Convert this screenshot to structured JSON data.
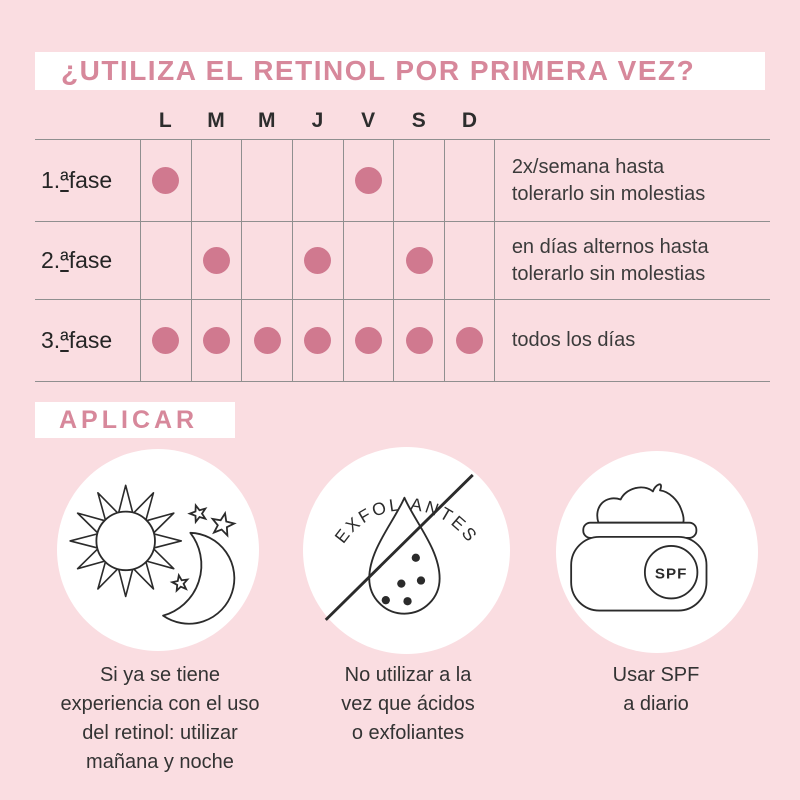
{
  "title": "¿UTILIZA EL RETINOL POR PRIMERA VEZ?",
  "section_heading": "APLICAR",
  "colors": {
    "background": "#fadde1",
    "panel": "#ffffff",
    "accent": "#d7889b",
    "dot": "#d0798f",
    "line": "#8f8f8f",
    "ink": "#2d2d2d",
    "note": "#3b3b3b"
  },
  "schedule_table": {
    "day_headers": [
      "L",
      "M",
      "M",
      "J",
      "V",
      "S",
      "D"
    ],
    "rows": [
      {
        "label": "1.ª fase",
        "dots": [
          1,
          0,
          0,
          0,
          1,
          0,
          0
        ],
        "note": "2x/semana hasta\ntolerarlo sin molestias"
      },
      {
        "label": "2.ª fase",
        "dots": [
          0,
          1,
          0,
          1,
          0,
          1,
          0
        ],
        "note": "en días alternos hasta\ntolerarlo sin molestias"
      },
      {
        "label": "3.ª fase",
        "dots": [
          1,
          1,
          1,
          1,
          1,
          1,
          1
        ],
        "note": "todos los días"
      }
    ]
  },
  "tips": [
    {
      "icon": "sun-and-moon-icon",
      "caption": "Si ya se tiene\nexperiencia con el uso\ndel retinol: utilizar\nmañana y noche"
    },
    {
      "icon": "no-exfoliants-icon",
      "icon_label": "EXFOLIANTES",
      "caption": "No utilizar a la\nvez que ácidos\no exfoliantes"
    },
    {
      "icon": "spf-cream-jar-icon",
      "icon_label": "SPF",
      "caption": "Usar SPF\na diario"
    }
  ]
}
